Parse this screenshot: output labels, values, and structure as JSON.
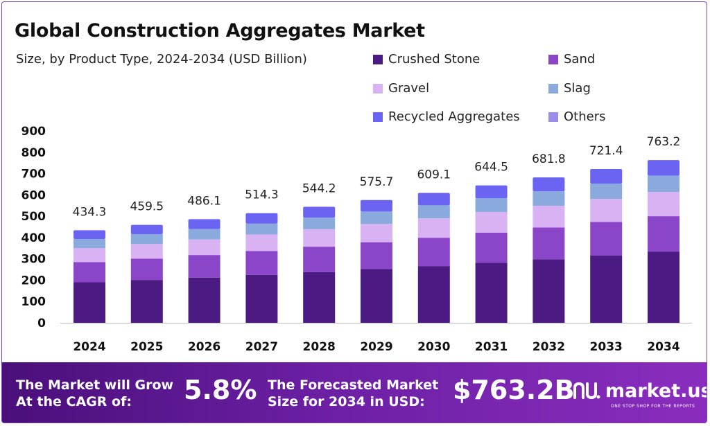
{
  "colors": {
    "crushed_stone": "#4b1a82",
    "sand": "#8a45c9",
    "gravel": "#d8b2f2",
    "slag": "#8aa9dd",
    "recycled": "#6b63f2",
    "others": "#9b8de8",
    "banner_start": "#4a0f7a",
    "banner_end": "#8a2dbf"
  },
  "header": {
    "title": "Global Construction Aggregates Market",
    "subtitle": "Size, by Product Type, 2024-2034 (USD Billion)"
  },
  "legend": [
    {
      "label": "Crushed Stone",
      "color": "#4b1a82"
    },
    {
      "label": "Sand",
      "color": "#8a45c9"
    },
    {
      "label": "Gravel",
      "color": "#d8b2f2"
    },
    {
      "label": "Slag",
      "color": "#8aa9dd"
    },
    {
      "label": "Recycled Aggregates",
      "color": "#6b63f2"
    },
    {
      "label": "Others",
      "color": "#9b8de8"
    }
  ],
  "chart_data": {
    "type": "bar",
    "stacked": true,
    "title": "Global Construction Aggregates Market",
    "subtitle": "Size, by Product Type, 2024-2034 (USD Billion)",
    "categories": [
      "2024",
      "2025",
      "2026",
      "2027",
      "2028",
      "2029",
      "2030",
      "2031",
      "2032",
      "2033",
      "2034"
    ],
    "totals": [
      "434.3",
      "459.5",
      "486.1",
      "514.3",
      "544.2",
      "575.7",
      "609.1",
      "644.5",
      "681.8",
      "721.4",
      "763.2"
    ],
    "ylim": [
      0,
      900
    ],
    "yticks": [
      0,
      100,
      200,
      300,
      400,
      500,
      600,
      700,
      800,
      900
    ],
    "grid": false,
    "legend_position": "top-right",
    "series": [
      {
        "name": "Crushed Stone",
        "color": "#4b1a82",
        "values": [
          190,
          201,
          212,
          225,
          238,
          252,
          266,
          282,
          298,
          315,
          333
        ]
      },
      {
        "name": "Sand",
        "color": "#8a45c9",
        "values": [
          95,
          100,
          106,
          112,
          119,
          126,
          133,
          141,
          149,
          158,
          167
        ]
      },
      {
        "name": "Gravel",
        "color": "#d8b2f2",
        "values": [
          65,
          69,
          73,
          77,
          82,
          86,
          91,
          97,
          102,
          108,
          114
        ]
      },
      {
        "name": "Slag",
        "color": "#8aa9dd",
        "values": [
          43,
          46,
          49,
          51,
          54,
          58,
          61,
          64,
          68,
          72,
          76
        ]
      },
      {
        "name": "Recycled Aggregates",
        "color": "#6b63f2",
        "values": [
          41.3,
          43.5,
          46.1,
          49.3,
          51.2,
          53.7,
          58.1,
          60.5,
          64.8,
          68.4,
          73.2
        ]
      },
      {
        "name": "Others",
        "color": "#9b8de8",
        "values": [
          0,
          0,
          0,
          0,
          0,
          0,
          0,
          0,
          0,
          0,
          0
        ]
      }
    ]
  },
  "banner": {
    "cagr_label_line1": "The Market will Grow",
    "cagr_label_line2": "At the CAGR of:",
    "cagr_value": "5.8%",
    "forecast_label_line1": "The Forecasted Market",
    "forecast_label_line2": "Size for 2034 in USD:",
    "forecast_value": "$763.2B",
    "logo_text": "market.us",
    "logo_tagline": "ONE STOP SHOP FOR THE REPORTS"
  }
}
